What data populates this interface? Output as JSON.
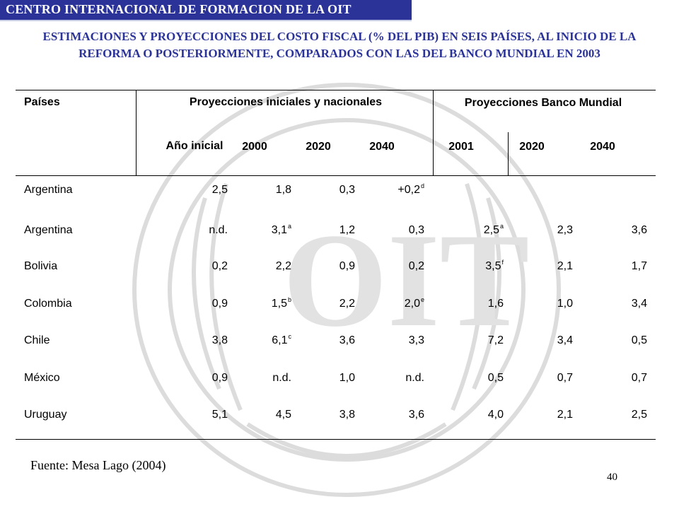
{
  "header": {
    "title": "CENTRO INTERNACIONAL DE FORMACION DE LA OIT"
  },
  "slide_title": "ESTIMACIONES Y PROYECCIONES DEL COSTO FISCAL (% DEL PIB) EN SEIS PAÍSES, AL INICIO DE LA REFORMA O POSTERIORMENTE, COMPARADOS CON LAS DEL BANCO MUNDIAL EN 2003",
  "table": {
    "col_paises": "Países",
    "group_iniciales": "Proyecciones iniciales y nacionales",
    "group_bm": "Proyecciones Banco Mundial",
    "sub_headers": [
      "Año inicial",
      "2000",
      "2020",
      "2040",
      "2001",
      "2020",
      "2040"
    ],
    "rows": [
      {
        "country": "Argentina",
        "cells": [
          {
            "v": "2,5",
            "s": ""
          },
          {
            "v": "1,8",
            "s": ""
          },
          {
            "v": "0,3",
            "s": ""
          },
          {
            "v": "+0,2",
            "s": "d"
          },
          {
            "v": "",
            "s": ""
          },
          {
            "v": "",
            "s": ""
          },
          {
            "v": "",
            "s": ""
          }
        ]
      },
      {
        "country": "Argentina",
        "cells": [
          {
            "v": "n.d.",
            "s": ""
          },
          {
            "v": "3,1",
            "s": "a"
          },
          {
            "v": "1,2",
            "s": ""
          },
          {
            "v": "0,3",
            "s": ""
          },
          {
            "v": "2,5",
            "s": "a"
          },
          {
            "v": "2,3",
            "s": ""
          },
          {
            "v": "3,6",
            "s": ""
          }
        ]
      },
      {
        "country": "Bolivia",
        "cells": [
          {
            "v": "0,2",
            "s": ""
          },
          {
            "v": "2,2",
            "s": ""
          },
          {
            "v": "0,9",
            "s": ""
          },
          {
            "v": "0,2",
            "s": ""
          },
          {
            "v": "3,5",
            "s": "f"
          },
          {
            "v": "2,1",
            "s": ""
          },
          {
            "v": "1,7",
            "s": ""
          }
        ]
      },
      {
        "country": "Colombia",
        "cells": [
          {
            "v": "0,9",
            "s": ""
          },
          {
            "v": "1,5",
            "s": "b"
          },
          {
            "v": "2,2",
            "s": ""
          },
          {
            "v": "2,0",
            "s": "e"
          },
          {
            "v": "1,6",
            "s": ""
          },
          {
            "v": "1,0",
            "s": ""
          },
          {
            "v": "3,4",
            "s": ""
          }
        ]
      },
      {
        "country": "Chile",
        "cells": [
          {
            "v": "3,8",
            "s": ""
          },
          {
            "v": "6,1",
            "s": "c"
          },
          {
            "v": "3,6",
            "s": ""
          },
          {
            "v": "3,3",
            "s": ""
          },
          {
            "v": "7,2",
            "s": ""
          },
          {
            "v": "3,4",
            "s": ""
          },
          {
            "v": "0,5",
            "s": ""
          }
        ]
      },
      {
        "country": "México",
        "cells": [
          {
            "v": "0,9",
            "s": ""
          },
          {
            "v": "n.d.",
            "s": ""
          },
          {
            "v": "1,0",
            "s": ""
          },
          {
            "v": "n.d.",
            "s": ""
          },
          {
            "v": "0,5",
            "s": ""
          },
          {
            "v": "0,7",
            "s": ""
          },
          {
            "v": "0,7",
            "s": ""
          }
        ]
      },
      {
        "country": "Uruguay",
        "cells": [
          {
            "v": "5,1",
            "s": ""
          },
          {
            "v": "4,5",
            "s": ""
          },
          {
            "v": "3,8",
            "s": ""
          },
          {
            "v": "3,6",
            "s": ""
          },
          {
            "v": "4,0",
            "s": ""
          },
          {
            "v": "2,1",
            "s": ""
          },
          {
            "v": "2,5",
            "s": ""
          }
        ]
      }
    ]
  },
  "source": "Fuente: Mesa Lago (2004)",
  "page_number": "40",
  "colors": {
    "header_bg": "#2b3399",
    "title": "#2b3399",
    "watermark": "#d9d9d9"
  }
}
